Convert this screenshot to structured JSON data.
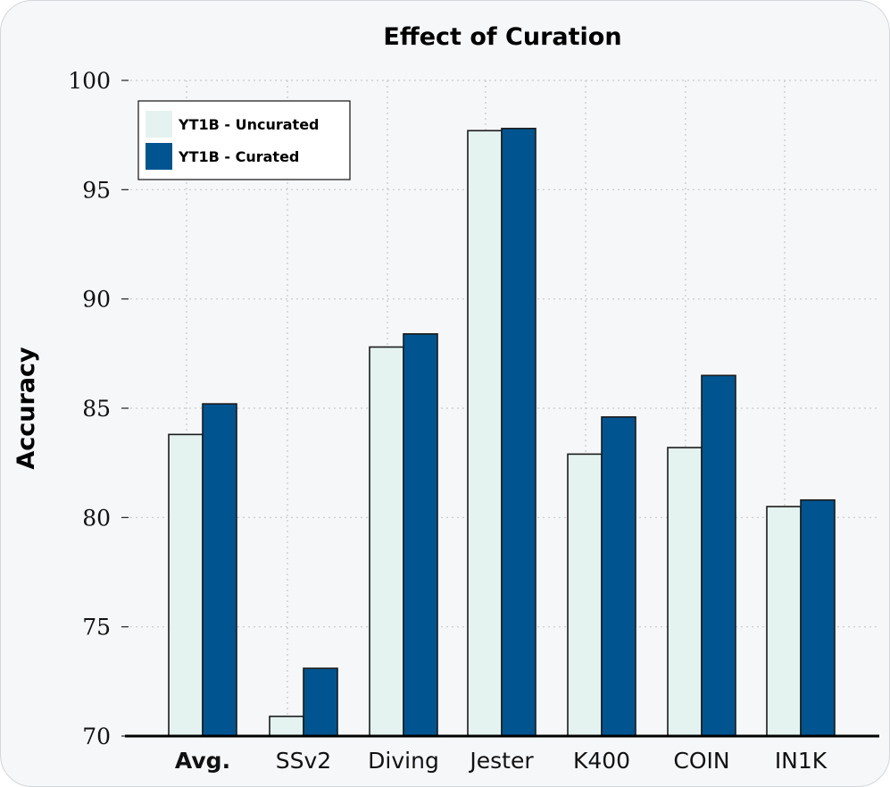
{
  "colors": {
    "uncurated": "#e4f3ef",
    "curated": "#005591",
    "grid": "#c8c8c8",
    "frame_bg": "#f6f7f9"
  },
  "chart_data": {
    "type": "bar",
    "title": "Effect of Curation",
    "xlabel": "",
    "ylabel": "Accuracy",
    "ylim": [
      70,
      100
    ],
    "yticks": [
      70,
      75,
      80,
      85,
      90,
      95,
      100
    ],
    "categories": [
      "Avg.",
      "SSv2",
      "Diving",
      "Jester",
      "K400",
      "COIN",
      "IN1K"
    ],
    "bold_categories": [
      "Avg."
    ],
    "grid": true,
    "legend_position": "top-left",
    "series": [
      {
        "name": "YT1B - Uncurated",
        "color": "#e4f3ef",
        "values": [
          83.8,
          70.9,
          87.8,
          97.7,
          82.9,
          83.2,
          80.5
        ]
      },
      {
        "name": "YT1B - Curated",
        "color": "#005591",
        "values": [
          85.2,
          73.1,
          88.4,
          97.8,
          84.6,
          86.5,
          80.8
        ]
      }
    ]
  }
}
